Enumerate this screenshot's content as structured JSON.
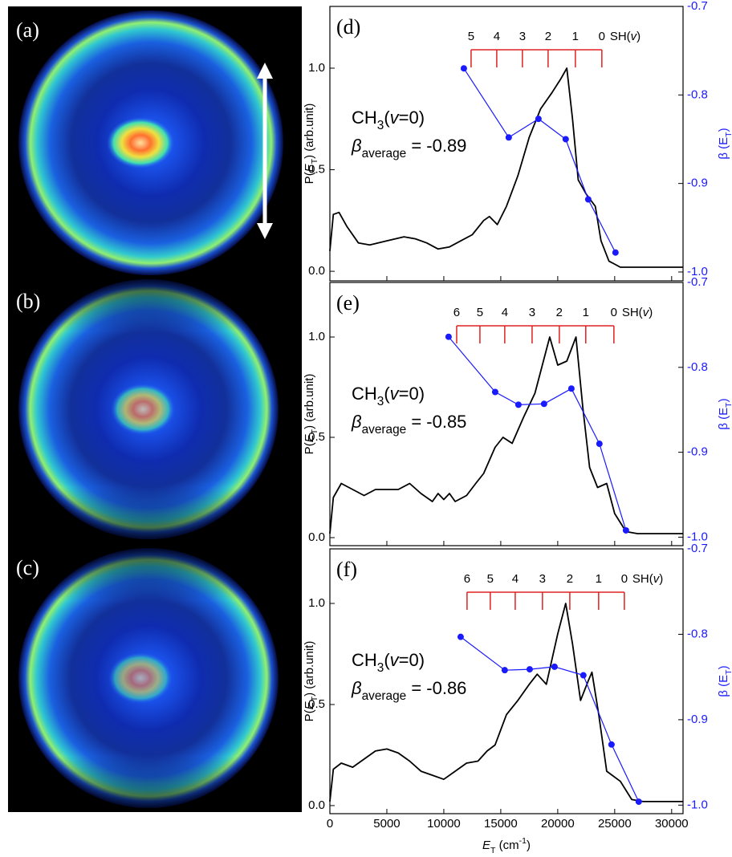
{
  "images": [
    {
      "label": "(a)"
    },
    {
      "label": "(b)"
    },
    {
      "label": "(c)"
    }
  ],
  "chart_data": [
    {
      "type": "line",
      "panel": "(d)",
      "xlim": [
        0,
        31000
      ],
      "ylim": [
        -0.047,
        1.304
      ],
      "y2lim": [
        -1.01,
        -0.7
      ],
      "yticks": [
        {
          "value": 0,
          "label": "0.0"
        },
        0.5,
        {
          "value": 1,
          "label": "1.0"
        }
      ],
      "y2ticks": [
        -0.7,
        -0.8,
        -0.9,
        {
          "value": -1,
          "label": "-1.0"
        }
      ],
      "y_label": [
        {
          "text": "P("
        },
        {
          "text": "E",
          "style": "italic"
        },
        {
          "text": "T",
          "style": "sub"
        },
        {
          "text": ") (arb.unit)"
        }
      ],
      "y2_label": [
        {
          "text": "β (E"
        },
        {
          "text": "T",
          "style": "sub"
        },
        {
          "text": ")"
        }
      ],
      "x": [
        0,
        300,
        800,
        1500,
        2500,
        3500,
        5000,
        6500,
        7500,
        8500,
        9500,
        10500,
        11500,
        12500,
        13500,
        14000,
        14700,
        15500,
        16500,
        17500,
        18500,
        19500,
        20300,
        20800,
        21300,
        21800,
        22500,
        23300,
        23800,
        24500,
        25500,
        31000
      ],
      "series": [
        {
          "color": "#000000",
          "values": [
            0.1,
            0.28,
            0.29,
            0.22,
            0.14,
            0.13,
            0.15,
            0.17,
            0.16,
            0.14,
            0.11,
            0.12,
            0.15,
            0.18,
            0.25,
            0.27,
            0.23,
            0.32,
            0.47,
            0.66,
            0.8,
            0.88,
            0.95,
            1.0,
            0.75,
            0.45,
            0.38,
            0.32,
            0.15,
            0.05,
            0.02,
            0.02
          ]
        },
        {
          "color": "#1a1aff",
          "axis": "y2",
          "x": [
            11760,
            15700,
            18310,
            20700,
            22680,
            25070
          ],
          "values": [
            -0.77,
            -0.848,
            -0.827,
            -0.85,
            -0.918,
            -0.978
          ]
        }
      ],
      "comb": {
        "color": "#e02020",
        "positions": [
          12394,
          14648,
          16901,
          19155,
          21549,
          23873
        ],
        "labels": [
          "5",
          "4",
          "3",
          "2",
          "1",
          "0"
        ],
        "label": [
          {
            "text": "SH("
          },
          {
            "text": "v",
            "style": "italic"
          },
          {
            "text": ")"
          }
        ]
      },
      "annotation": [
        [
          {
            "text": "CH"
          },
          {
            "text": "3",
            "style": "sub"
          },
          {
            "text": "("
          },
          {
            "text": "v",
            "style": "italic"
          },
          {
            "text": "=0)"
          }
        ],
        [
          {
            "text": "β",
            "style": "italic"
          },
          {
            "text": "average",
            "style": "sub"
          },
          {
            "text": " = -0.89"
          }
        ]
      ]
    },
    {
      "type": "line",
      "panel": "(e)",
      "xlim": [
        0,
        31000
      ],
      "ylim": [
        -0.04,
        1.272
      ],
      "y2lim": [
        -1.01,
        -0.7
      ],
      "yticks": [
        {
          "value": 0,
          "label": "0.0"
        },
        0.5,
        {
          "value": 1,
          "label": "1.0"
        }
      ],
      "y2ticks": [
        -0.7,
        -0.8,
        -0.9,
        {
          "value": -1,
          "label": "-1.0"
        }
      ],
      "y_label": [
        {
          "text": "P("
        },
        {
          "text": "E",
          "style": "italic"
        },
        {
          "text": "T",
          "style": "sub"
        },
        {
          "text": ") (arb.unit)"
        }
      ],
      "y2_label": [
        {
          "text": "β (E"
        },
        {
          "text": "T",
          "style": "sub"
        },
        {
          "text": ")"
        }
      ],
      "x": [
        0,
        300,
        1000,
        2000,
        3000,
        4000,
        5000,
        6000,
        7000,
        8000,
        9000,
        9500,
        10000,
        10500,
        11000,
        12000,
        12800,
        13500,
        14500,
        15200,
        16000,
        17000,
        18000,
        19300,
        20000,
        20800,
        21600,
        22200,
        22800,
        23500,
        24300,
        25000,
        26000,
        27000,
        31000
      ],
      "series": [
        {
          "color": "#000000",
          "values": [
            0.02,
            0.2,
            0.27,
            0.24,
            0.21,
            0.24,
            0.24,
            0.24,
            0.27,
            0.22,
            0.18,
            0.22,
            0.19,
            0.22,
            0.18,
            0.21,
            0.27,
            0.32,
            0.45,
            0.5,
            0.47,
            0.6,
            0.72,
            1.0,
            0.86,
            0.88,
            1.0,
            0.65,
            0.35,
            0.25,
            0.27,
            0.12,
            0.03,
            0.02,
            0.02
          ]
        },
        {
          "color": "#1a1aff",
          "axis": "y2",
          "x": [
            10420,
            14510,
            16550,
            18800,
            21200,
            23660,
            25990
          ],
          "values": [
            -0.764,
            -0.829,
            -0.844,
            -0.843,
            -0.825,
            -0.89,
            -0.992
          ]
        }
      ],
      "comb": {
        "color": "#e02020",
        "positions": [
          11130,
          13170,
          15350,
          17750,
          20140,
          22460,
          24930
        ],
        "labels": [
          "6",
          "5",
          "4",
          "3",
          "2",
          "1",
          "0"
        ],
        "label": [
          {
            "text": "SH("
          },
          {
            "text": "v",
            "style": "italic"
          },
          {
            "text": ")"
          }
        ]
      },
      "annotation": [
        [
          {
            "text": "CH"
          },
          {
            "text": "3",
            "style": "sub"
          },
          {
            "text": "("
          },
          {
            "text": "v",
            "style": "italic"
          },
          {
            "text": "=0)"
          }
        ],
        [
          {
            "text": "β",
            "style": "italic"
          },
          {
            "text": "average",
            "style": "sub"
          },
          {
            "text": " = -0.85"
          }
        ]
      ]
    },
    {
      "type": "line",
      "panel": "(f)",
      "xlim": [
        0,
        31000
      ],
      "ylim": [
        -0.04,
        1.27
      ],
      "y2lim": [
        -1.01,
        -0.7
      ],
      "xticks": [
        0,
        5000,
        10000,
        15000,
        20000,
        25000,
        30000
      ],
      "yticks": [
        {
          "value": 0,
          "label": "0.0"
        },
        0.5,
        {
          "value": 1,
          "label": "1.0"
        }
      ],
      "y2ticks": [
        -0.7,
        -0.8,
        -0.9,
        {
          "value": -1,
          "label": "-1.0"
        }
      ],
      "x_label": [
        {
          "text": "E",
          "style": "italic"
        },
        {
          "text": "T",
          "style": "sub"
        },
        {
          "text": " (cm"
        },
        {
          "text": "-1",
          "style": "sup"
        },
        {
          "text": ")"
        }
      ],
      "y_label": [
        {
          "text": "P("
        },
        {
          "text": "E",
          "style": "italic"
        },
        {
          "text": "T",
          "style": "sub"
        },
        {
          "text": ") (arb.unit)"
        }
      ],
      "y2_label": [
        {
          "text": "β (E"
        },
        {
          "text": "T",
          "style": "sub"
        },
        {
          "text": ")"
        }
      ],
      "x": [
        0,
        300,
        1000,
        2000,
        3000,
        4000,
        5000,
        6000,
        7000,
        8000,
        9000,
        10000,
        11000,
        12000,
        13000,
        13800,
        14500,
        15500,
        16500,
        17500,
        18200,
        19000,
        20000,
        20700,
        21300,
        22000,
        22700,
        23000,
        23600,
        24300,
        25500,
        26500,
        27500,
        31000
      ],
      "series": [
        {
          "color": "#000000",
          "values": [
            0.02,
            0.18,
            0.21,
            0.19,
            0.23,
            0.27,
            0.28,
            0.26,
            0.22,
            0.17,
            0.15,
            0.13,
            0.17,
            0.21,
            0.22,
            0.27,
            0.3,
            0.45,
            0.52,
            0.6,
            0.65,
            0.6,
            0.85,
            1.0,
            0.8,
            0.52,
            0.62,
            0.66,
            0.45,
            0.17,
            0.12,
            0.03,
            0.02,
            0.02
          ]
        },
        {
          "color": "#1a1aff",
          "axis": "y2",
          "x": [
            11480,
            15350,
            17540,
            19720,
            22250,
            24720,
            27110
          ],
          "values": [
            -0.803,
            -0.842,
            -0.841,
            -0.838,
            -0.848,
            -0.929,
            -0.996
          ]
        }
      ],
      "comb": {
        "color": "#e02020",
        "positions": [
          12040,
          14080,
          16270,
          18660,
          21060,
          23590,
          25850
        ],
        "labels": [
          "6",
          "5",
          "4",
          "3",
          "2",
          "1",
          "0"
        ],
        "label": [
          {
            "text": "SH("
          },
          {
            "text": "v",
            "style": "italic"
          },
          {
            "text": ")"
          }
        ]
      },
      "annotation": [
        [
          {
            "text": "CH"
          },
          {
            "text": "3",
            "style": "sub"
          },
          {
            "text": "("
          },
          {
            "text": "v",
            "style": "italic"
          },
          {
            "text": "=0)"
          }
        ],
        [
          {
            "text": "β",
            "style": "italic"
          },
          {
            "text": "average",
            "style": "sub"
          },
          {
            "text": " = -0.86"
          }
        ]
      ]
    }
  ]
}
